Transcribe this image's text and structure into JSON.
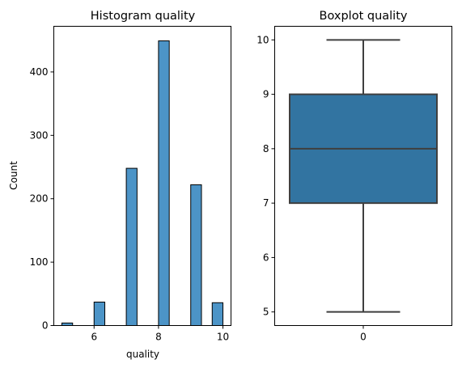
{
  "chart_data": [
    {
      "type": "bar",
      "title": "Histogram quality",
      "xlabel": "quality",
      "ylabel": "Count",
      "bin_edges": [
        5.0,
        5.3333,
        5.6667,
        6.0,
        6.3333,
        6.6667,
        7.0,
        7.3333,
        7.6667,
        8.0,
        8.3333,
        8.6667,
        9.0,
        9.3333,
        9.6667,
        10.0
      ],
      "counts": [
        4,
        0,
        0,
        37,
        0,
        0,
        248,
        0,
        0,
        449,
        0,
        0,
        222,
        0,
        36
      ],
      "xlim": [
        4.75,
        10.25
      ],
      "ylim": [
        0,
        472
      ],
      "xticks": [
        "6",
        "8",
        "10"
      ],
      "yticks": [
        "0",
        "100",
        "200",
        "300",
        "400"
      ],
      "color": "#4c94c7",
      "grid": false
    },
    {
      "type": "box",
      "title": "Boxplot quality",
      "categories": [
        "0"
      ],
      "whisker_low": 5,
      "q1": 7,
      "median": 8,
      "q3": 9,
      "whisker_high": 10,
      "ylim": [
        4.75,
        10.25
      ],
      "yticks": [
        "5",
        "6",
        "7",
        "8",
        "9",
        "10"
      ],
      "color": "#3274a1",
      "grid": false
    }
  ]
}
